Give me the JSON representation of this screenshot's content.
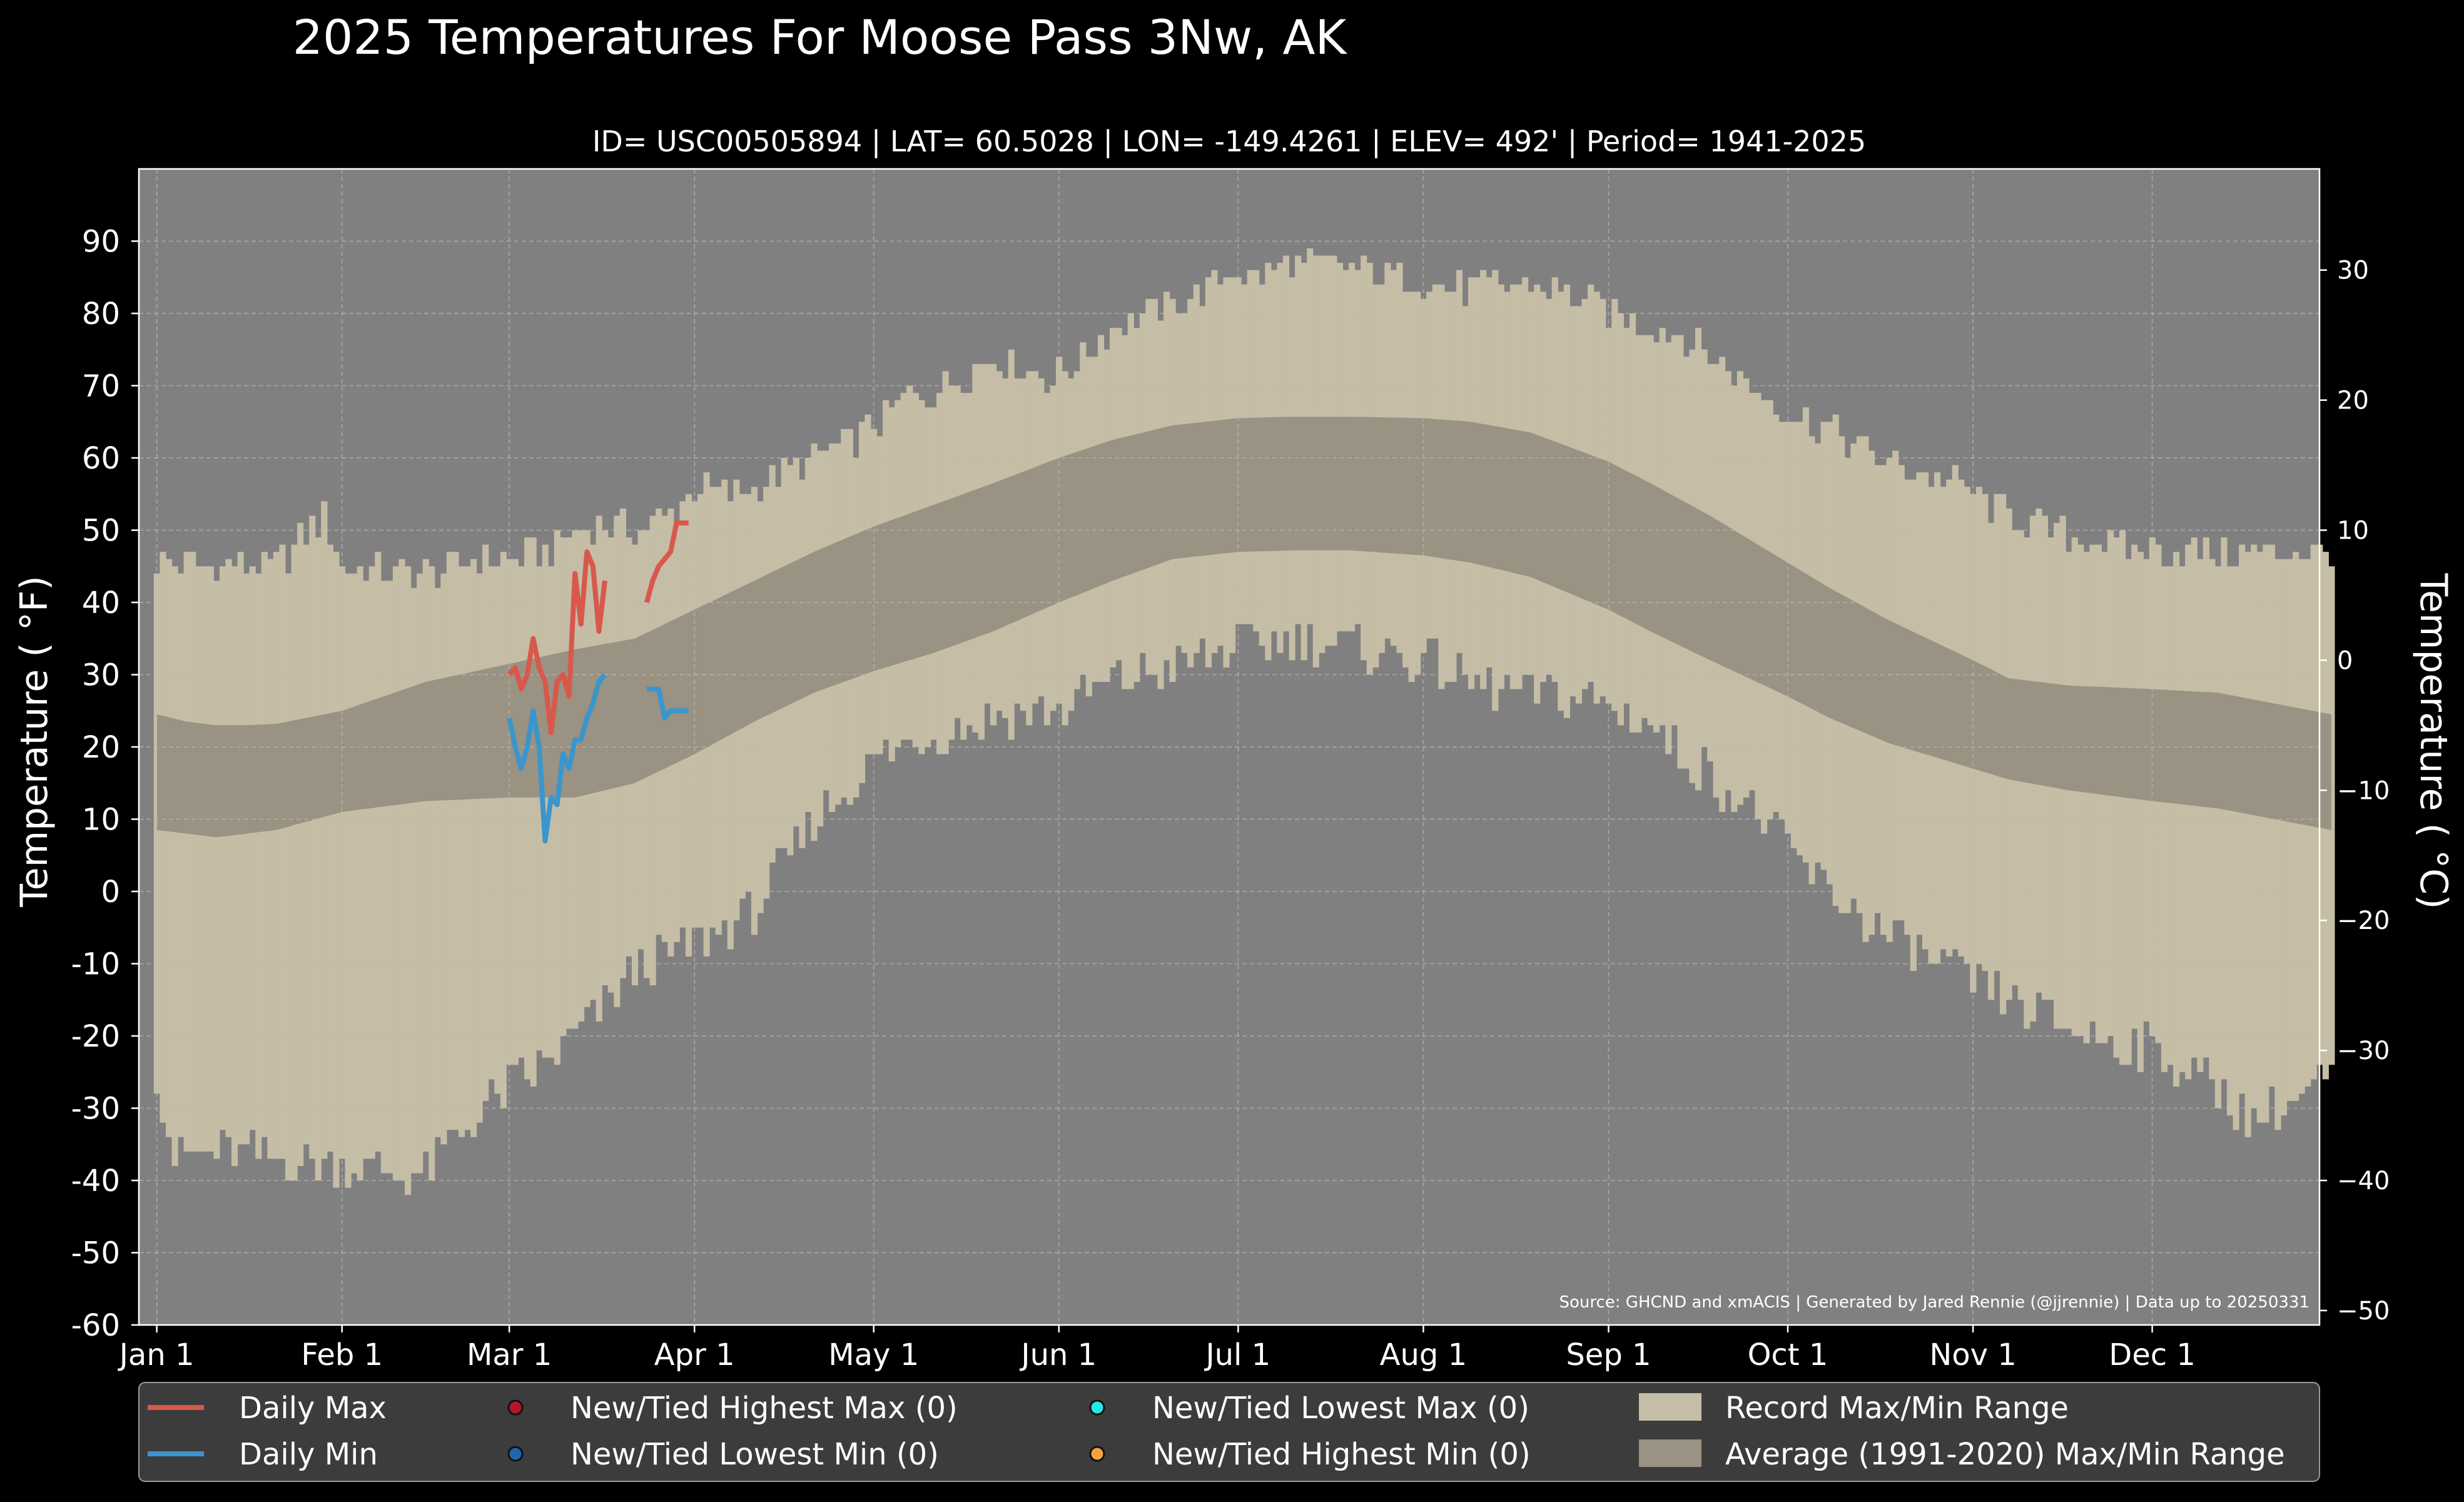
{
  "chart_data": {
    "type": "area",
    "title": "2025 Temperatures For Moose Pass 3Nw, AK",
    "subtitle": "ID= USC00505894 | LAT= 60.5028 | LON= -149.4261 | ELEV= 492' | Period= 1941-2025",
    "ylabel_left": "Temperature ($^\\circ$F)",
    "ylabel_left_text": "Temperature ( °F)",
    "ylabel_right_text": "Temperature ( °C)",
    "source_note": "Source: GHCND and xmACIS | Generated by Jared Rennie (@jjrennie) | Data up to 20250331",
    "ylim_f": [
      -60,
      100
    ],
    "yticks_f": [
      -60,
      -50,
      -40,
      -30,
      -20,
      -10,
      0,
      10,
      20,
      30,
      40,
      50,
      60,
      70,
      80,
      90
    ],
    "ytick_labels_f": [
      "-60",
      "-50",
      "-40",
      "-30",
      "-20",
      "-10",
      "0",
      "10",
      "20",
      "30",
      "40",
      "50",
      "60",
      "70",
      "80",
      "90"
    ],
    "yticks_c": [
      -50,
      -40,
      -30,
      -20,
      -10,
      0,
      10,
      20,
      30
    ],
    "ytick_labels_c": [
      "−50",
      "−40",
      "−30",
      "−20",
      "−10",
      "0",
      "10",
      "20",
      "30"
    ],
    "xlim_doy": [
      -3,
      362
    ],
    "xticks_doy": [
      0,
      31,
      59,
      90,
      120,
      151,
      181,
      212,
      243,
      273,
      304,
      334
    ],
    "xtick_labels": [
      "Jan 1",
      "Feb 1",
      "Mar 1",
      "Apr 1",
      "May 1",
      "Jun 1",
      "Jul 1",
      "Aug 1",
      "Sep 1",
      "Oct 1",
      "Nov 1",
      "Dec 1"
    ],
    "grid": true,
    "legend_placement": "bottom",
    "colors": {
      "background": "#000000",
      "plot_bg": "#808080",
      "record_range": "#c5bda5",
      "average_range": "#9a9282",
      "daily_max": "#d9584c",
      "daily_min": "#3a96cc",
      "highest_max_marker": "#b2182b",
      "lowest_min_marker": "#2166ac",
      "lowest_max_marker": "#26e8e8",
      "highest_min_marker": "#f4a340",
      "legend_bg": "#3c3c3c"
    },
    "legend": [
      {
        "label": "Daily Max",
        "kind": "line",
        "color": "#d9584c"
      },
      {
        "label": "Daily Min",
        "kind": "line",
        "color": "#3a96cc"
      },
      {
        "label": "New/Tied Highest Max (0)",
        "kind": "marker",
        "color": "#b2182b"
      },
      {
        "label": "New/Tied Lowest Min (0)",
        "kind": "marker",
        "color": "#2166ac"
      },
      {
        "label": "New/Tied Lowest Max (0)",
        "kind": "marker",
        "color": "#26e8e8"
      },
      {
        "label": "New/Tied Highest Min (0)",
        "kind": "marker",
        "color": "#f4a340"
      },
      {
        "label": "Record Max/Min Range",
        "kind": "patch",
        "color": "#c5bda5"
      },
      {
        "label": "Average (1991-2020) Max/Min Range",
        "kind": "patch",
        "color": "#9a9282"
      }
    ],
    "record_max_anchors": {
      "x": [
        0,
        10,
        20,
        28,
        31,
        40,
        45,
        50,
        55,
        60,
        66,
        70,
        75,
        80,
        86,
        90,
        95,
        100,
        110,
        118,
        125,
        133,
        140,
        150,
        155,
        160,
        170,
        175,
        180,
        183,
        190,
        200,
        210,
        215,
        220,
        225,
        230,
        236,
        243,
        250,
        255,
        262,
        270,
        273,
        280,
        290,
        300,
        304,
        310,
        320,
        334,
        345,
        364
      ],
      "y": [
        46,
        45,
        45,
        52,
        45,
        44,
        44,
        45,
        46,
        46,
        47,
        50,
        51,
        50,
        52,
        56,
        55,
        56,
        60,
        63,
        68,
        70,
        74,
        71,
        74,
        78,
        81,
        83,
        86,
        85,
        87,
        86,
        85,
        84,
        83,
        84,
        84,
        83,
        80,
        78,
        77,
        73,
        68,
        66,
        64,
        59,
        57,
        55,
        52,
        49,
        47,
        47,
        47
      ]
    },
    "record_min_anchors": {
      "x": [
        0,
        3,
        10,
        20,
        31,
        40,
        45,
        50,
        59,
        65,
        70,
        75,
        80,
        90,
        95,
        100,
        110,
        120,
        130,
        140,
        151,
        160,
        170,
        181,
        190,
        200,
        212,
        220,
        230,
        240,
        250,
        260,
        265,
        270,
        275,
        280,
        285,
        290,
        300,
        310,
        320,
        334,
        345,
        350,
        355,
        364
      ],
      "y": [
        -25,
        -37,
        -36,
        -37,
        -38,
        -39,
        -39,
        -34,
        -27,
        -24,
        -20,
        -16,
        -11,
        -7,
        -5,
        -3,
        10,
        18,
        22,
        24,
        25,
        29,
        31,
        34,
        35,
        34,
        32,
        29,
        27,
        27,
        23,
        16,
        13,
        9,
        4,
        0,
        -3,
        -6,
        -11,
        -15,
        -19,
        -22,
        -27,
        -31,
        -30,
        -26
      ]
    },
    "average_max_anchors": {
      "x": [
        0,
        5,
        10,
        15,
        20,
        31,
        45,
        59,
        70,
        80,
        90,
        100,
        110,
        120,
        130,
        140,
        151,
        160,
        170,
        181,
        190,
        200,
        212,
        220,
        230,
        243,
        250,
        260,
        273,
        280,
        290,
        304,
        310,
        320,
        334,
        345,
        364
      ],
      "y": [
        24.5,
        23.5,
        23,
        23,
        23.2,
        25,
        29,
        31.5,
        33.5,
        35,
        39,
        43,
        47,
        50.5,
        53.5,
        56.5,
        60,
        62.5,
        64.5,
        65.5,
        65.7,
        65.7,
        65.5,
        65,
        63.5,
        59.5,
        56.5,
        52,
        45.5,
        42,
        37.5,
        32,
        29.5,
        28.5,
        28,
        27.5,
        24.5
      ]
    },
    "average_min_anchors": {
      "x": [
        0,
        5,
        10,
        15,
        20,
        31,
        45,
        59,
        70,
        80,
        90,
        100,
        110,
        120,
        130,
        140,
        151,
        160,
        170,
        181,
        190,
        200,
        212,
        220,
        230,
        243,
        250,
        260,
        273,
        280,
        290,
        304,
        310,
        320,
        334,
        345,
        364
      ],
      "y": [
        8.5,
        8,
        7.5,
        8,
        8.5,
        11,
        12.5,
        13,
        13,
        15,
        19,
        23.5,
        27.5,
        30.5,
        33,
        36,
        40,
        43,
        46,
        47,
        47.2,
        47.2,
        46.5,
        45.5,
        43.5,
        39,
        36,
        32,
        27,
        24,
        20.5,
        17,
        15.5,
        14,
        12.5,
        11.5,
        8.5
      ]
    },
    "series": [
      {
        "name": "Daily Max",
        "x": [
          59,
          60,
          61,
          62,
          63,
          64,
          65,
          66,
          67,
          68,
          69,
          70,
          71,
          72,
          73,
          74,
          75,
          76,
          77,
          78,
          79,
          80,
          82,
          83,
          84,
          85,
          86,
          87,
          88,
          89
        ],
        "y": [
          30,
          31,
          28,
          30,
          35,
          31,
          29,
          22,
          29,
          30,
          27,
          44,
          37,
          47,
          45,
          36,
          43,
          null,
          null,
          null,
          null,
          null,
          40,
          43,
          45,
          46,
          47,
          51,
          51,
          51
        ]
      },
      {
        "name": "Daily Min",
        "x": [
          59,
          60,
          61,
          62,
          63,
          64,
          65,
          66,
          67,
          68,
          69,
          70,
          71,
          72,
          73,
          74,
          75,
          76,
          77,
          78,
          79,
          80,
          82,
          83,
          84,
          85,
          86,
          87,
          88,
          89
        ],
        "y": [
          24,
          20,
          17,
          20,
          25,
          20,
          7,
          13,
          12,
          19,
          17,
          21,
          21,
          24,
          26,
          29,
          30,
          null,
          null,
          null,
          null,
          null,
          28,
          28,
          28,
          24,
          25,
          25,
          25,
          25
        ]
      }
    ]
  }
}
